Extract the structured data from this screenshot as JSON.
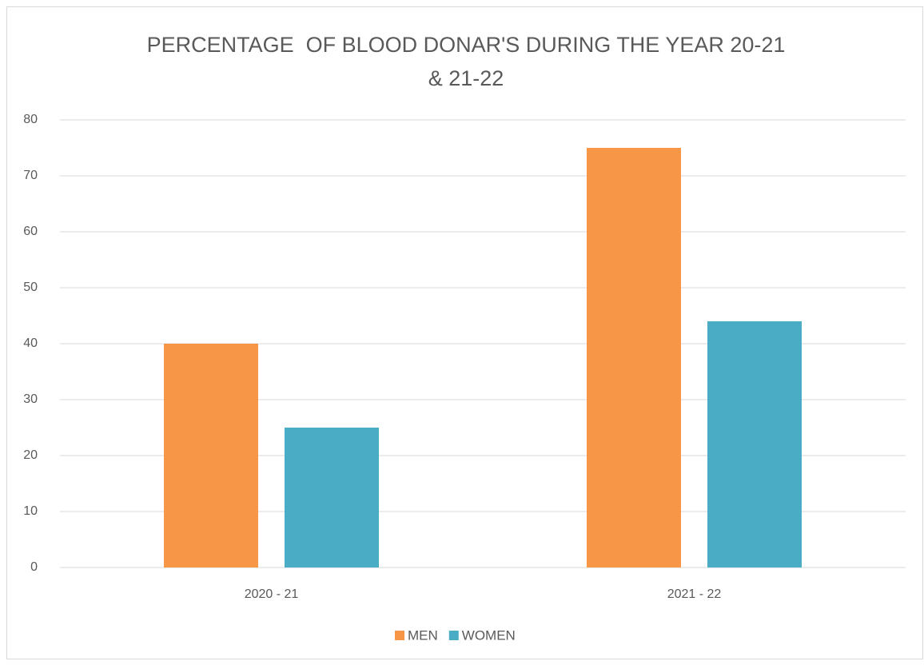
{
  "chart_data": {
    "type": "bar",
    "title": [
      "PERCENTAGE  OF BLOOD DONAR'S DURING THE YEAR 20-21",
      "& 21-22"
    ],
    "categories": [
      "2020 - 21",
      "2021 - 22"
    ],
    "series": [
      {
        "name": "MEN",
        "color": "#f79646",
        "values": [
          40,
          75
        ]
      },
      {
        "name": "WOMEN",
        "color": "#4bacc6",
        "values": [
          25,
          44
        ]
      }
    ],
    "ylim": [
      0,
      80
    ],
    "yticks": [
      0,
      10,
      20,
      30,
      40,
      50,
      60,
      70,
      80
    ],
    "grid": true,
    "legend": "bottom"
  }
}
